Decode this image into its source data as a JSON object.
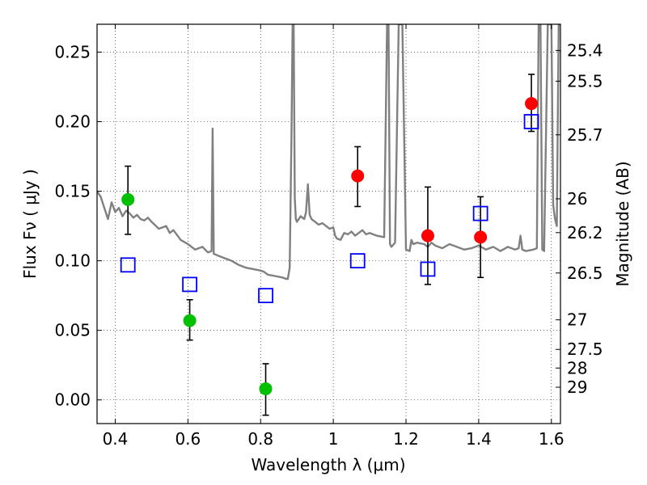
{
  "chart_data": {
    "type": "scatter",
    "xlabel": "Wavelength  λ (μm)",
    "ylabel": "Flux  Fν  ( μJy )",
    "y2label": "Magnitude (AB)",
    "xlim": [
      0.35,
      1.625
    ],
    "ylim": [
      -0.017,
      0.27
    ],
    "xticks": [
      {
        "v": 0.4,
        "label": "0.4"
      },
      {
        "v": 0.6,
        "label": "0.6"
      },
      {
        "v": 0.8,
        "label": "0.8"
      },
      {
        "v": 1.0,
        "label": "1"
      },
      {
        "v": 1.2,
        "label": "1.2"
      },
      {
        "v": 1.4,
        "label": "1.4"
      },
      {
        "v": 1.6,
        "label": "1.6"
      }
    ],
    "yticks": [
      {
        "v": 0.0,
        "label": "0.00"
      },
      {
        "v": 0.05,
        "label": "0.05"
      },
      {
        "v": 0.1,
        "label": "0.10"
      },
      {
        "v": 0.15,
        "label": "0.15"
      },
      {
        "v": 0.2,
        "label": "0.20"
      },
      {
        "v": 0.25,
        "label": "0.25"
      }
    ],
    "mag_ticks": [
      {
        "mag": 25.4,
        "label": "25.4"
      },
      {
        "mag": 25.5,
        "label": "25.5"
      },
      {
        "mag": 25.7,
        "label": "25.7"
      },
      {
        "mag": 26,
        "label": "26"
      },
      {
        "mag": 26.2,
        "label": "26.2"
      },
      {
        "mag": 26.5,
        "label": "26.5"
      },
      {
        "mag": 27,
        "label": "27"
      },
      {
        "mag": 27.5,
        "label": "27.5"
      },
      {
        "mag": 28,
        "label": "28"
      },
      {
        "mag": 29,
        "label": "29"
      }
    ],
    "grid": true,
    "series": [
      {
        "name": "model spectrum",
        "kind": "line",
        "color": "#808080",
        "x": [
          0.35,
          0.36,
          0.37,
          0.38,
          0.39,
          0.4,
          0.41,
          0.42,
          0.43,
          0.44,
          0.45,
          0.46,
          0.47,
          0.48,
          0.49,
          0.5,
          0.52,
          0.54,
          0.55,
          0.56,
          0.58,
          0.6,
          0.62,
          0.64,
          0.655,
          0.665,
          0.668,
          0.671,
          0.68,
          0.7,
          0.72,
          0.74,
          0.76,
          0.78,
          0.8,
          0.81,
          0.82,
          0.84,
          0.86,
          0.87,
          0.875,
          0.88,
          0.885,
          0.888,
          0.891,
          0.894,
          0.897,
          0.9,
          0.91,
          0.92,
          0.925,
          0.93,
          0.935,
          0.94,
          0.95,
          0.96,
          0.97,
          0.98,
          0.99,
          1.0,
          1.005,
          1.01,
          1.02,
          1.03,
          1.04,
          1.05,
          1.06,
          1.07,
          1.08,
          1.09,
          1.1,
          1.12,
          1.14,
          1.148,
          1.152,
          1.156,
          1.16,
          1.17,
          1.18,
          1.19,
          1.2,
          1.21,
          1.215,
          1.22,
          1.23,
          1.25,
          1.26,
          1.27,
          1.28,
          1.3,
          1.32,
          1.34,
          1.36,
          1.38,
          1.4,
          1.42,
          1.44,
          1.46,
          1.48,
          1.5,
          1.51,
          1.515,
          1.52,
          1.53,
          1.55,
          1.56,
          1.565,
          1.57,
          1.575,
          1.58,
          1.59,
          1.595,
          1.6,
          1.605,
          1.61,
          1.615,
          1.62,
          1.625
        ],
        "y": [
          0.15,
          0.146,
          0.138,
          0.13,
          0.142,
          0.135,
          0.138,
          0.132,
          0.136,
          0.134,
          0.131,
          0.133,
          0.13,
          0.129,
          0.131,
          0.128,
          0.123,
          0.125,
          0.12,
          0.122,
          0.115,
          0.112,
          0.108,
          0.11,
          0.106,
          0.107,
          0.195,
          0.105,
          0.104,
          0.102,
          0.1,
          0.097,
          0.095,
          0.094,
          0.093,
          0.092,
          0.09,
          0.089,
          0.088,
          0.087,
          0.087,
          0.095,
          0.19,
          0.27,
          0.27,
          0.145,
          0.13,
          0.128,
          0.132,
          0.13,
          0.135,
          0.155,
          0.133,
          0.13,
          0.128,
          0.126,
          0.127,
          0.125,
          0.123,
          0.124,
          0.118,
          0.116,
          0.115,
          0.12,
          0.119,
          0.121,
          0.118,
          0.12,
          0.122,
          0.119,
          0.12,
          0.118,
          0.117,
          0.27,
          0.27,
          0.112,
          0.11,
          0.113,
          0.27,
          0.27,
          0.108,
          0.107,
          0.115,
          0.112,
          0.113,
          0.112,
          0.11,
          0.113,
          0.111,
          0.109,
          0.112,
          0.11,
          0.108,
          0.109,
          0.111,
          0.108,
          0.11,
          0.107,
          0.11,
          0.108,
          0.109,
          0.118,
          0.108,
          0.107,
          0.108,
          0.109,
          0.27,
          0.27,
          0.108,
          0.107,
          0.27,
          0.27,
          0.27,
          0.14,
          0.13,
          0.125,
          0.27,
          0.27
        ]
      },
      {
        "name": "photometry (green)",
        "kind": "errorbar",
        "color": "#00c000",
        "points": [
          {
            "x": 0.435,
            "y": 0.144,
            "lo": 0.119,
            "hi": 0.168
          },
          {
            "x": 0.605,
            "y": 0.057,
            "lo": 0.043,
            "hi": 0.072
          },
          {
            "x": 0.814,
            "y": 0.008,
            "lo": -0.011,
            "hi": 0.026
          }
        ]
      },
      {
        "name": "photometry (red)",
        "kind": "errorbar",
        "color": "#ff0000",
        "points": [
          {
            "x": 1.067,
            "y": 0.161,
            "lo": 0.139,
            "hi": 0.182
          },
          {
            "x": 1.26,
            "y": 0.118,
            "lo": 0.083,
            "hi": 0.153
          },
          {
            "x": 1.405,
            "y": 0.117,
            "lo": 0.088,
            "hi": 0.146
          },
          {
            "x": 1.545,
            "y": 0.213,
            "lo": 0.193,
            "hi": 0.234
          }
        ]
      },
      {
        "name": "model photometry",
        "kind": "square",
        "color": "#0000ff",
        "points": [
          {
            "x": 0.435,
            "y": 0.097
          },
          {
            "x": 0.605,
            "y": 0.083
          },
          {
            "x": 0.814,
            "y": 0.075
          },
          {
            "x": 1.067,
            "y": 0.1
          },
          {
            "x": 1.26,
            "y": 0.094
          },
          {
            "x": 1.405,
            "y": 0.134
          },
          {
            "x": 1.545,
            "y": 0.2
          }
        ]
      }
    ]
  }
}
